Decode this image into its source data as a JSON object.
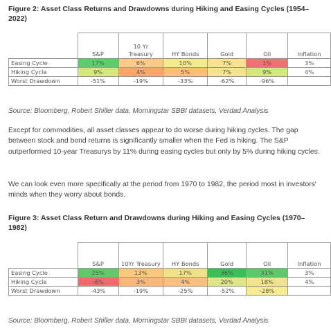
{
  "figure1": {
    "title": "Figure 2: Asset Class Returns and Drawdowns during Hiking and Easing Cycles (1954–2022)",
    "table": {
      "columns": [
        "S&P",
        "10 Yr Treasury",
        "HY Bonds",
        "Gold",
        "Oil",
        "Inflation"
      ],
      "rows": [
        {
          "label": "Easing Cycle",
          "cells": [
            "17%",
            "6%",
            "10%",
            "7%",
            "1%",
            "3%"
          ],
          "colors": [
            "#5dcd6c",
            "#fbc98a",
            "#f2ea8e",
            "#f6e294",
            "#f07171",
            null
          ]
        },
        {
          "label": "Hiking Cycle",
          "cells": [
            "9%",
            "4%",
            "5%",
            "7%",
            "9%",
            "4%"
          ],
          "colors": [
            "#d6e67c",
            "#f8a66d",
            "#fbbd7e",
            "#f6e294",
            "#d6e67c",
            null
          ]
        },
        {
          "label": "Worst Drawdown",
          "cells": [
            "-51%",
            "-19%",
            "-33%",
            "-62%",
            "-96%",
            ""
          ],
          "colors": [
            null,
            null,
            null,
            null,
            null,
            null
          ]
        }
      ]
    },
    "source": "Source: Bloomberg, Robert Shiller data, Morningstar SBBI datasets, Verdad Analysis"
  },
  "paragraphs": [
    "Except for commodities, all asset classes appear to do worse during hiking cycles. The gap between stock and bond returns is significantly smaller when the Fed is hiking. The S&P outperformed 10-year Treasurys by 11% during easing cycles but only by 5% during hiking cycles.",
    "We can look even more specifically at the period from 1970 to 1982, the period most in investors' minds when they worry about bonds."
  ],
  "figure2": {
    "title": "Figure 3: Asset Class Return and Drawdowns during Hiking and Easing Cycles (1970–1982)",
    "table": {
      "columns": [
        "S&P",
        "10Yr Treasury",
        "HY Bonds",
        "Gold",
        "Oil",
        "Inflation"
      ],
      "rows": [
        {
          "label": "Easing Cycle",
          "cells": [
            "25%",
            "13%",
            "17%",
            "36%",
            "31%",
            "3%"
          ],
          "colors": [
            "#63c76b",
            "#f8c880",
            "#f0e088",
            "#3cbf5a",
            "#5cc86a",
            null
          ]
        },
        {
          "label": "Hiking Cycle",
          "cells": [
            "-6%",
            "3%",
            "4%",
            "20%",
            "18%",
            "4%"
          ],
          "colors": [
            "#f06b6b",
            "#fbb67a",
            "#fbc07f",
            "#dfe585",
            "#f0e38e",
            null
          ]
        },
        {
          "label": "Worst Drawdown",
          "cells": [
            "-43%",
            "-19%",
            "-25%",
            "-52%",
            "-28%",
            ""
          ],
          "colors": [
            null,
            null,
            null,
            null,
            "#f6eb90",
            null
          ]
        }
      ]
    },
    "source": "Source: Bloomberg, Robert Shiller data, Morningstar SBBI datasets, Verdad Analysis"
  }
}
